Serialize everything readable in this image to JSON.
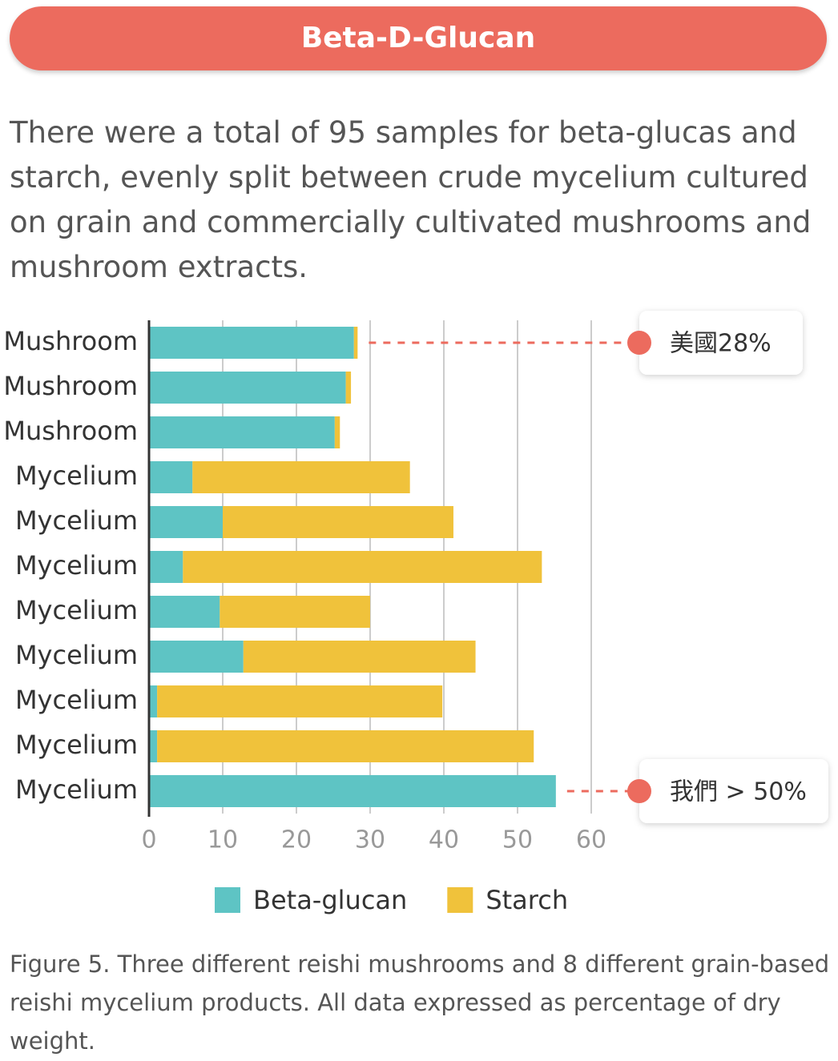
{
  "header": {
    "title": "Beta-D-Glucan"
  },
  "intro": "There were a total of 95 samples for beta-glucas and starch, evenly split between crude mycelium cultured on grain and commercially cultivated mushrooms and mushroom extracts.",
  "chart_data": {
    "type": "stacked-barh",
    "categories": [
      "Mushroom",
      "Mushroom",
      "Mushroom",
      "Mycelium",
      "Mycelium",
      "Mycelium",
      "Mycelium",
      "Mycelium",
      "Mycelium",
      "Mycelium",
      "Mycelium"
    ],
    "series": [
      {
        "name": "Beta-glucan",
        "color": "#5ec4c4",
        "values": [
          27.8,
          26.7,
          25.2,
          5.9,
          10,
          4.6,
          9.6,
          12.8,
          1.1,
          1.1,
          55.2
        ]
      },
      {
        "name": "Starch",
        "color": "#f0c23b",
        "values": [
          0.5,
          0.7,
          0.7,
          29.5,
          31.3,
          48.7,
          20.4,
          31.5,
          38.7,
          51.1,
          0
        ]
      }
    ],
    "xlim": [
      0,
      60
    ],
    "xticks": [
      0,
      10,
      20,
      30,
      40,
      50,
      60
    ],
    "grid": true,
    "annotations": [
      {
        "category_index": 0,
        "text": "美國28%"
      },
      {
        "category_index": 10,
        "text": "我們 > 50%"
      }
    ]
  },
  "caption": "Figure 5. Three different reishi mushrooms and 8 different grain-based reishi mycelium products. All data expressed as percentage of dry weight."
}
